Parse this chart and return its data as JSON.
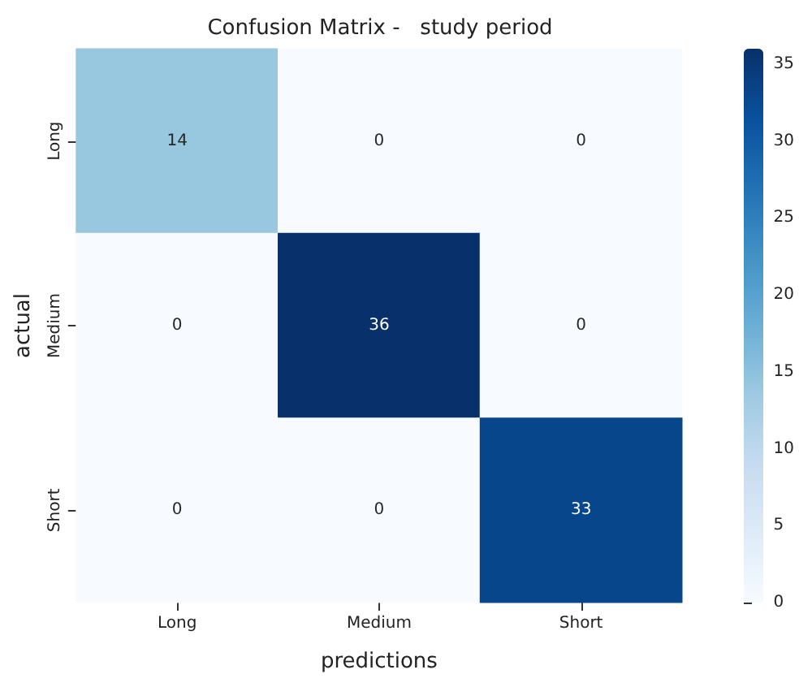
{
  "chart_data": {
    "type": "heatmap",
    "title": "Confusion Matrix -   study period",
    "xlabel": "predictions",
    "ylabel": "actual",
    "categories": [
      "Long",
      "Medium",
      "Short"
    ],
    "y_categories": [
      "Long",
      "Medium",
      "Short"
    ],
    "cells": [
      [
        14,
        0,
        0
      ],
      [
        0,
        36,
        0
      ],
      [
        0,
        0,
        33
      ]
    ],
    "data_labels": true,
    "clim": [
      0,
      36
    ],
    "cticks": [
      0,
      5,
      10,
      15,
      20,
      25,
      30,
      35
    ]
  }
}
